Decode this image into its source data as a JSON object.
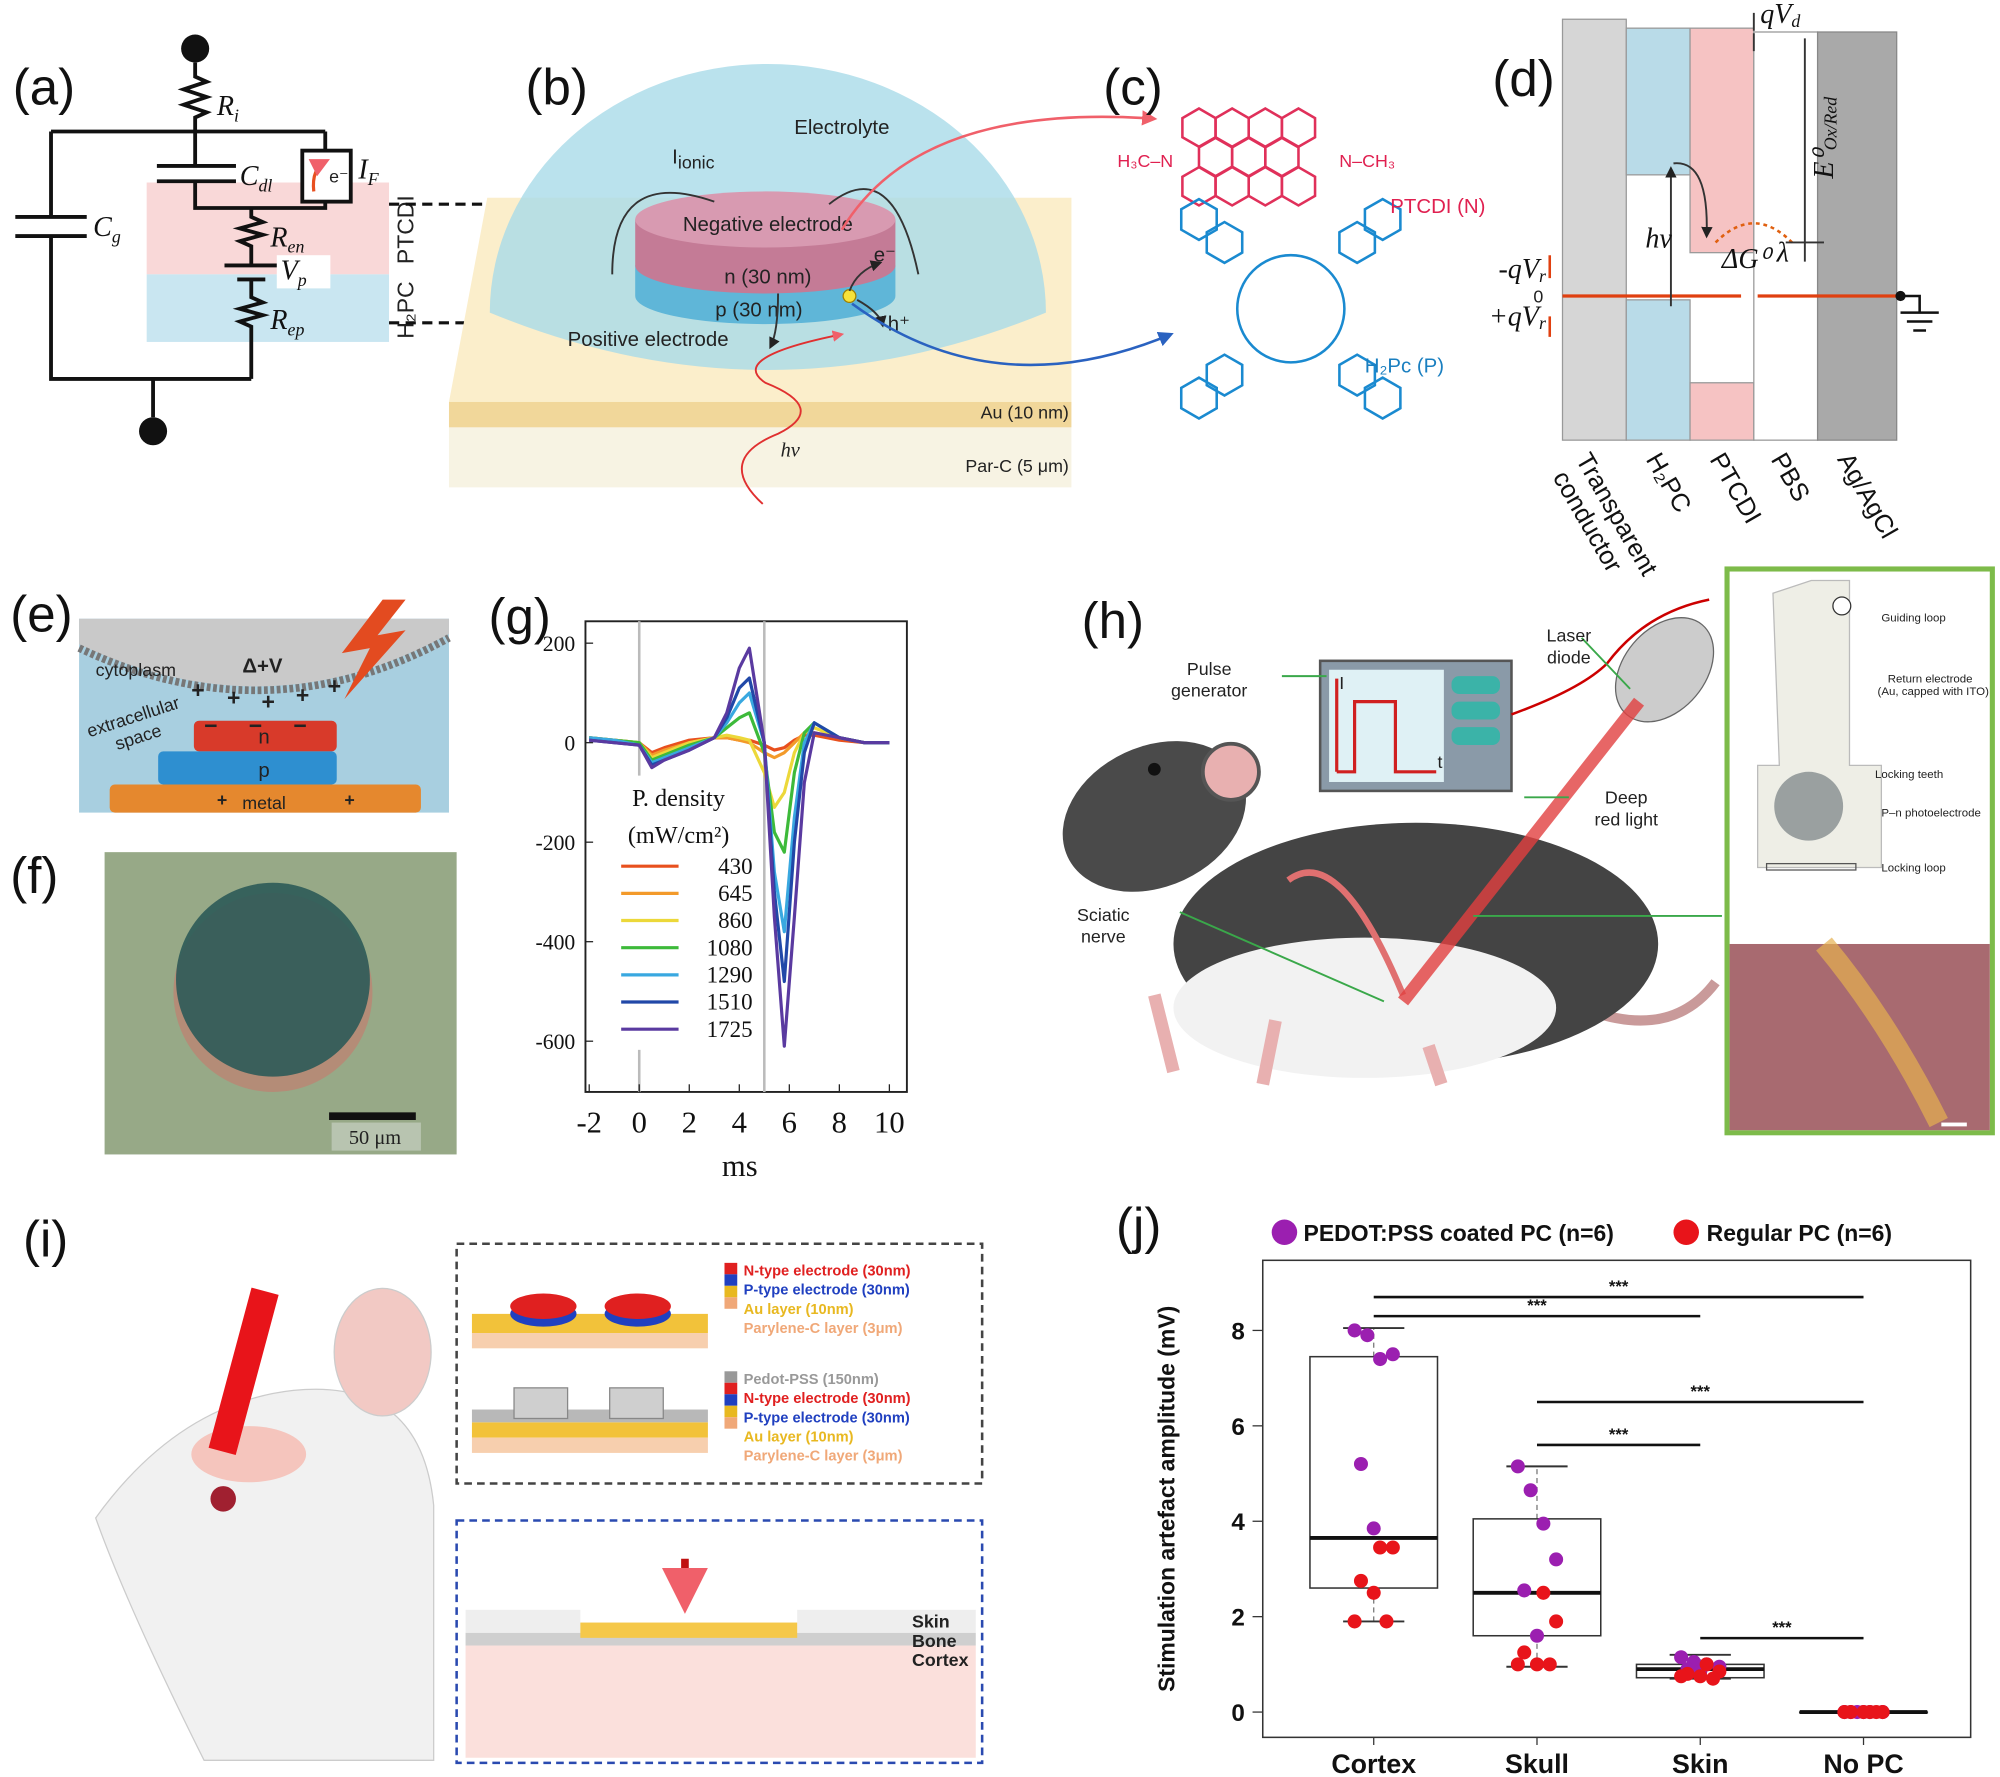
{
  "panels": {
    "a": {
      "label": "(a)",
      "symbols": [
        {
          "main": "R",
          "sub": "i"
        },
        {
          "main": "C",
          "sub": "dl"
        },
        {
          "main": "I",
          "sub": "F"
        },
        {
          "main": "C",
          "sub": "g"
        },
        {
          "main": "R",
          "sub": "en"
        },
        {
          "main": "V",
          "sub": "p"
        },
        {
          "main": "R",
          "sub": "ep"
        }
      ],
      "electron": "e⁻",
      "layers": [
        "PTCDI",
        "H₂PC"
      ]
    },
    "b": {
      "label": "(b)",
      "electrolyte": "Electrolyte",
      "current": {
        "main": "I",
        "sub": "ionic"
      },
      "negative": "Negative electrode",
      "n_layer": "n (30 nm)",
      "p_layer": "p (30 nm)",
      "positive": "Positive electrode",
      "electron": "e⁻",
      "hole": "h⁺",
      "photon": "hν",
      "au": "Au (10 nm)",
      "parc": "Par-C (5 μm)"
    },
    "c": {
      "label": "(c)",
      "ptcdi_left": "H₃C–N",
      "ptcdi_right": "N–CH₃",
      "ptcdi": "PTCDI (N)",
      "h2pc": "H₂Pc (P)"
    },
    "d": {
      "label": "(d)",
      "qvd": {
        "main": "qV",
        "sub": "d"
      },
      "redox": {
        "main": "E⁰",
        "sub": "Ox/Red"
      },
      "photon": "hν",
      "gibbs": "ΔG⁰",
      "lambda": "λ",
      "neg_qvr": {
        "main": "-qV",
        "sub": "r"
      },
      "zero": "0",
      "pos_qvr": {
        "main": "+qV",
        "sub": "r"
      },
      "columns": [
        [
          "Transparent",
          "conductor"
        ],
        [
          "H₂PC"
        ],
        [
          "PTCDI"
        ],
        [
          "PBS"
        ],
        [
          "Ag/AgCl"
        ]
      ]
    },
    "e": {
      "label": "(e)",
      "cytoplasm": "cytoplasm",
      "potential": "Δ+V",
      "extracellular": [
        "extracellular",
        "space"
      ],
      "n": "n",
      "p": "p",
      "metal": "metal",
      "plus": "+",
      "minus": "−"
    },
    "f": {
      "label": "(f)",
      "scale": "50 μm"
    },
    "h": {
      "label": "(h)",
      "pulse": [
        "Pulse",
        "generator"
      ],
      "laser": [
        "Laser",
        "diode"
      ],
      "light": [
        "Deep",
        "red light"
      ],
      "nerve": [
        "Sciatic",
        "nerve"
      ],
      "axis_i": "I",
      "axis_t": "t",
      "inset": {
        "guiding": "Guiding loop",
        "return": [
          "Return electrode",
          "(Au, capped with ITO)"
        ],
        "teeth": "Locking teeth",
        "photo": "P–n photoelectrode",
        "loop": "Locking loop"
      }
    },
    "i": {
      "label": "(i)",
      "plain": [
        "N-type electrode (30nm)",
        "P-type electrode (30nm)",
        "Au layer (10nm)",
        "Parylene-C layer (3μm)"
      ],
      "coated": [
        "Pedot-PSS (150nm)",
        "N-type electrode (30nm)",
        "P-type electrode (30nm)",
        "Au layer (10nm)",
        "Parylene-C layer (3μm)"
      ],
      "tissue": [
        "Skin",
        "Bone",
        "Cortex"
      ]
    }
  },
  "chart_data": [
    {
      "type": "line",
      "panel_label": "(g)",
      "xlabel": "ms",
      "legend_title": "P. density",
      "legend_unit": "(mW/cm²)",
      "x": [
        -2,
        -1,
        0,
        0.5,
        1,
        2,
        3,
        3.5,
        4,
        4.4,
        5,
        5.4,
        5.8,
        6.2,
        6.6,
        7,
        8,
        9,
        10
      ],
      "series": [
        {
          "name": "430",
          "color": "#e8501e",
          "values": [
            10,
            5,
            0,
            -20,
            -10,
            5,
            10,
            10,
            5,
            5,
            -5,
            -15,
            -10,
            5,
            15,
            15,
            5,
            0,
            0
          ]
        },
        {
          "name": "645",
          "color": "#f39a2a",
          "values": [
            10,
            5,
            0,
            -25,
            -15,
            0,
            10,
            10,
            5,
            0,
            -20,
            -30,
            -20,
            0,
            20,
            20,
            10,
            0,
            0
          ]
        },
        {
          "name": "860",
          "color": "#ecd83a",
          "values": [
            10,
            5,
            0,
            -30,
            -20,
            0,
            10,
            15,
            10,
            5,
            -60,
            -130,
            -100,
            -20,
            20,
            30,
            10,
            0,
            0
          ]
        },
        {
          "name": "1080",
          "color": "#3dba3a",
          "values": [
            10,
            5,
            0,
            -35,
            -25,
            -5,
            10,
            30,
            50,
            60,
            -20,
            -180,
            -220,
            -60,
            20,
            40,
            10,
            0,
            0
          ]
        },
        {
          "name": "1290",
          "color": "#39a8e0",
          "values": [
            10,
            5,
            -5,
            -40,
            -30,
            -10,
            10,
            40,
            80,
            100,
            0,
            -260,
            -380,
            -150,
            0,
            40,
            10,
            0,
            0
          ]
        },
        {
          "name": "1510",
          "color": "#2148a8",
          "values": [
            5,
            0,
            -5,
            -45,
            -35,
            -15,
            10,
            50,
            110,
            130,
            0,
            -300,
            -480,
            -200,
            -20,
            40,
            10,
            0,
            0
          ]
        },
        {
          "name": "1725",
          "color": "#5a3aa0",
          "values": [
            5,
            0,
            -5,
            -50,
            -35,
            -15,
            10,
            60,
            150,
            190,
            0,
            -350,
            -610,
            -350,
            -80,
            20,
            10,
            0,
            0
          ]
        }
      ],
      "xlim": [
        -2.15,
        10.7
      ],
      "ylim": [
        -702,
        244
      ],
      "xticks": [
        -2,
        0,
        2,
        4,
        6,
        8,
        10
      ],
      "yticks": [
        -600,
        -400,
        -200,
        0,
        200
      ],
      "vlines": [
        0,
        5
      ]
    },
    {
      "type": "box",
      "panel_label": "(j)",
      "ylabel": "Stimulation artefact amplitude (mV)",
      "categories": [
        "Cortex",
        "Skull",
        "Skin",
        "No PC"
      ],
      "boxes": [
        {
          "low": 1.9,
          "q1": 2.6,
          "median": 3.65,
          "q3": 7.45,
          "high": 8.05
        },
        {
          "low": 0.95,
          "q1": 1.6,
          "median": 2.5,
          "q3": 4.05,
          "high": 5.15
        },
        {
          "low": 0.7,
          "q1": 0.72,
          "median": 0.9,
          "q3": 1.0,
          "high": 1.2
        },
        {
          "low": 0,
          "q1": 0,
          "median": 0,
          "q3": 0,
          "high": 0
        }
      ],
      "series": [
        {
          "name": "PEDOT:PSS coated PC (n=6)",
          "color": "#9b1fb0",
          "values": [
            [
              8.0,
              7.9,
              7.4,
              7.5,
              5.2,
              3.85
            ],
            [
              5.15,
              4.65,
              3.95,
              3.2,
              2.55,
              1.6
            ],
            [
              1.15,
              1.05,
              1.0,
              0.95,
              0.9,
              0.85
            ],
            [
              0,
              0,
              0,
              0,
              0,
              0
            ]
          ]
        },
        {
          "name": "Regular PC (n=6)",
          "color": "#e8141a",
          "values": [
            [
              3.45,
              3.45,
              2.75,
              2.5,
              1.9,
              1.9
            ],
            [
              2.5,
              1.9,
              1.25,
              1.0,
              1.0,
              1.0
            ],
            [
              1.0,
              0.85,
              0.8,
              0.75,
              0.7,
              0.75
            ],
            [
              0,
              0,
              0,
              0,
              0,
              0
            ]
          ]
        }
      ],
      "ylim": [
        -0.53,
        9.47
      ],
      "yticks": [
        0,
        2,
        4,
        6,
        8
      ],
      "comparisons": [
        {
          "from": 0,
          "to": 3,
          "y": 8.7,
          "label": "***"
        },
        {
          "from": 0,
          "to": 2,
          "y": 8.3,
          "label": "***"
        },
        {
          "from": 1,
          "to": 3,
          "y": 6.5,
          "label": "***"
        },
        {
          "from": 1,
          "to": 2,
          "y": 5.6,
          "label": "***"
        },
        {
          "from": 2,
          "to": 3,
          "y": 1.55,
          "label": "***"
        }
      ]
    }
  ]
}
